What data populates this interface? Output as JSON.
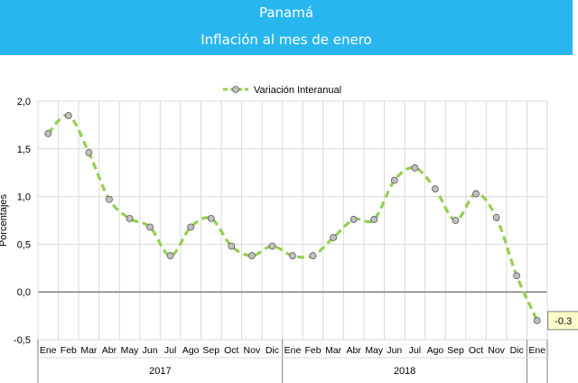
{
  "header": {
    "line1": "Panamá",
    "line2": "Inflación al mes de enero",
    "background": "#29b6ee"
  },
  "chart_data": {
    "type": "line",
    "title": "",
    "ylabel": "Porcentajes",
    "xlabel": "",
    "ylim": [
      -0.5,
      2.0
    ],
    "yticks": [
      -0.5,
      0.0,
      0.5,
      1.0,
      1.5,
      2.0
    ],
    "ytick_labels": [
      "-0,5",
      "0,0",
      "0,5",
      "1,0",
      "1,5",
      "2,0"
    ],
    "grid": true,
    "legend_position": "top-center",
    "categories": [
      "Ene",
      "Feb",
      "Mar",
      "Abr",
      "May",
      "Jun",
      "Jul",
      "Ago",
      "Sep",
      "Oct",
      "Nov",
      "Dic",
      "Ene",
      "Feb",
      "Mar",
      "Abr",
      "May",
      "Jun",
      "Jul",
      "Ago",
      "Sep",
      "Oct",
      "Nov",
      "Dic",
      "Ene"
    ],
    "year_groups": [
      {
        "label": "2017",
        "start": 0,
        "count": 12
      },
      {
        "label": "2018",
        "start": 12,
        "count": 12
      }
    ],
    "series": [
      {
        "name": "Variación Interanual",
        "color": "#92d050",
        "marker_color": "#c0c0c0",
        "values": [
          1.66,
          1.85,
          1.46,
          0.97,
          0.77,
          0.68,
          0.38,
          0.68,
          0.77,
          0.48,
          0.38,
          0.48,
          0.38,
          0.38,
          0.57,
          0.76,
          0.76,
          1.17,
          1.3,
          1.08,
          0.75,
          1.03,
          0.78,
          0.17,
          -0.3
        ]
      }
    ],
    "annotation": {
      "text": "-0.3",
      "index": 24
    }
  }
}
